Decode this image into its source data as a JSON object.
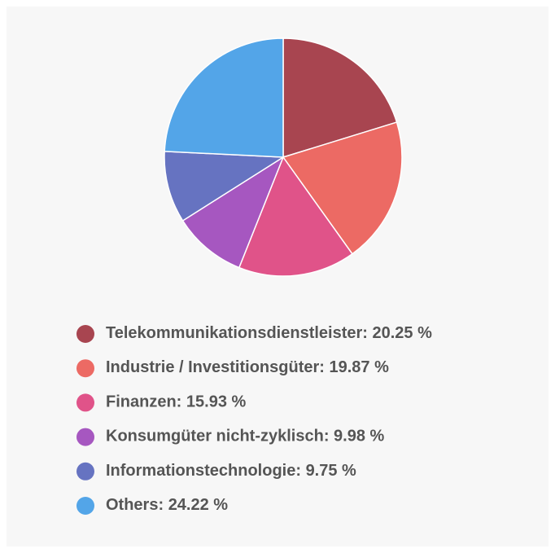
{
  "chart_data": {
    "type": "pie",
    "categories": [
      "Telekommunikationsdienstleister",
      "Industrie / Investitionsgüter",
      "Finanzen",
      "Konsumgüter nicht-zyklisch",
      "Informationstechnologie",
      "Others"
    ],
    "values": [
      20.25,
      19.87,
      15.93,
      9.98,
      9.75,
      24.22
    ],
    "value_labels": [
      "20.25 %",
      "19.87 %",
      "15.93 %",
      "9.98 %",
      "9.75 %",
      "24.22 %"
    ],
    "colors": [
      "#a84550",
      "#ec6a64",
      "#e05389",
      "#a657c0",
      "#6673c1",
      "#53a5e8"
    ],
    "legend": "bottom"
  }
}
